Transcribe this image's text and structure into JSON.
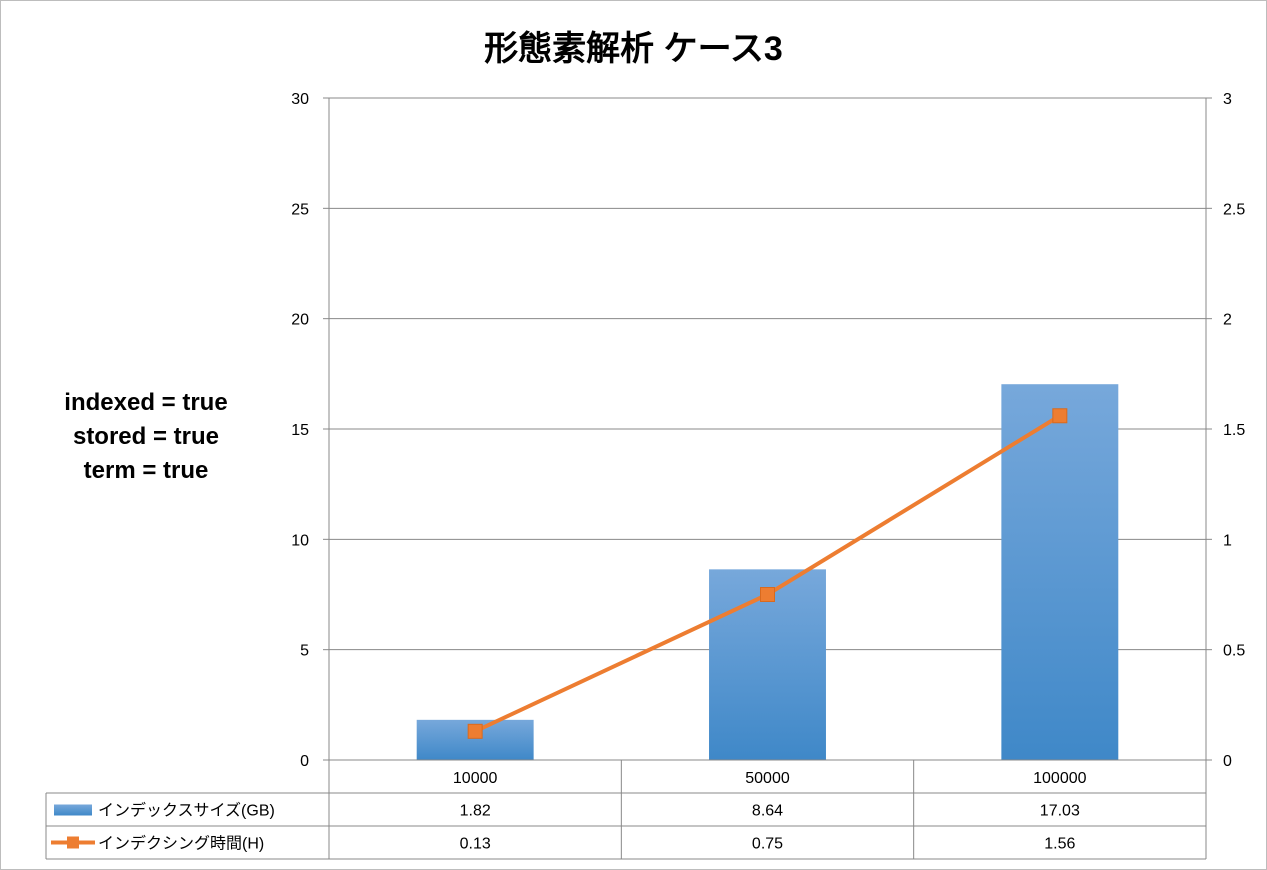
{
  "annotation": [
    "indexed = true",
    "stored = true",
    "term = true"
  ],
  "colors": {
    "bar": "#5a9bd5",
    "bar_top": "#77a6d9",
    "line": "#ed7d31",
    "grid": "#888888"
  },
  "chart_data": {
    "type": "bar",
    "title": "形態素解析 ケース3",
    "categories": [
      "10000",
      "50000",
      "100000"
    ],
    "y_left_range": [
      0,
      30
    ],
    "y_left_ticks": [
      "0",
      "5",
      "10",
      "15",
      "20",
      "25",
      "30"
    ],
    "y_right_range": [
      0,
      3
    ],
    "y_right_ticks": [
      "0",
      "0.5",
      "1",
      "1.5",
      "2",
      "2.5",
      "3"
    ],
    "grid": true,
    "legend": "data-table",
    "series": [
      {
        "name": "インデックスサイズ(GB)",
        "type": "bar",
        "axis": "left",
        "values": [
          1.82,
          8.64,
          17.03
        ],
        "labels": [
          "1.82",
          "8.64",
          "17.03"
        ]
      },
      {
        "name": "インデクシング時間(H)",
        "type": "line",
        "axis": "right",
        "values": [
          0.13,
          0.75,
          1.56
        ],
        "labels": [
          "0.13",
          "0.75",
          "1.56"
        ]
      }
    ]
  }
}
